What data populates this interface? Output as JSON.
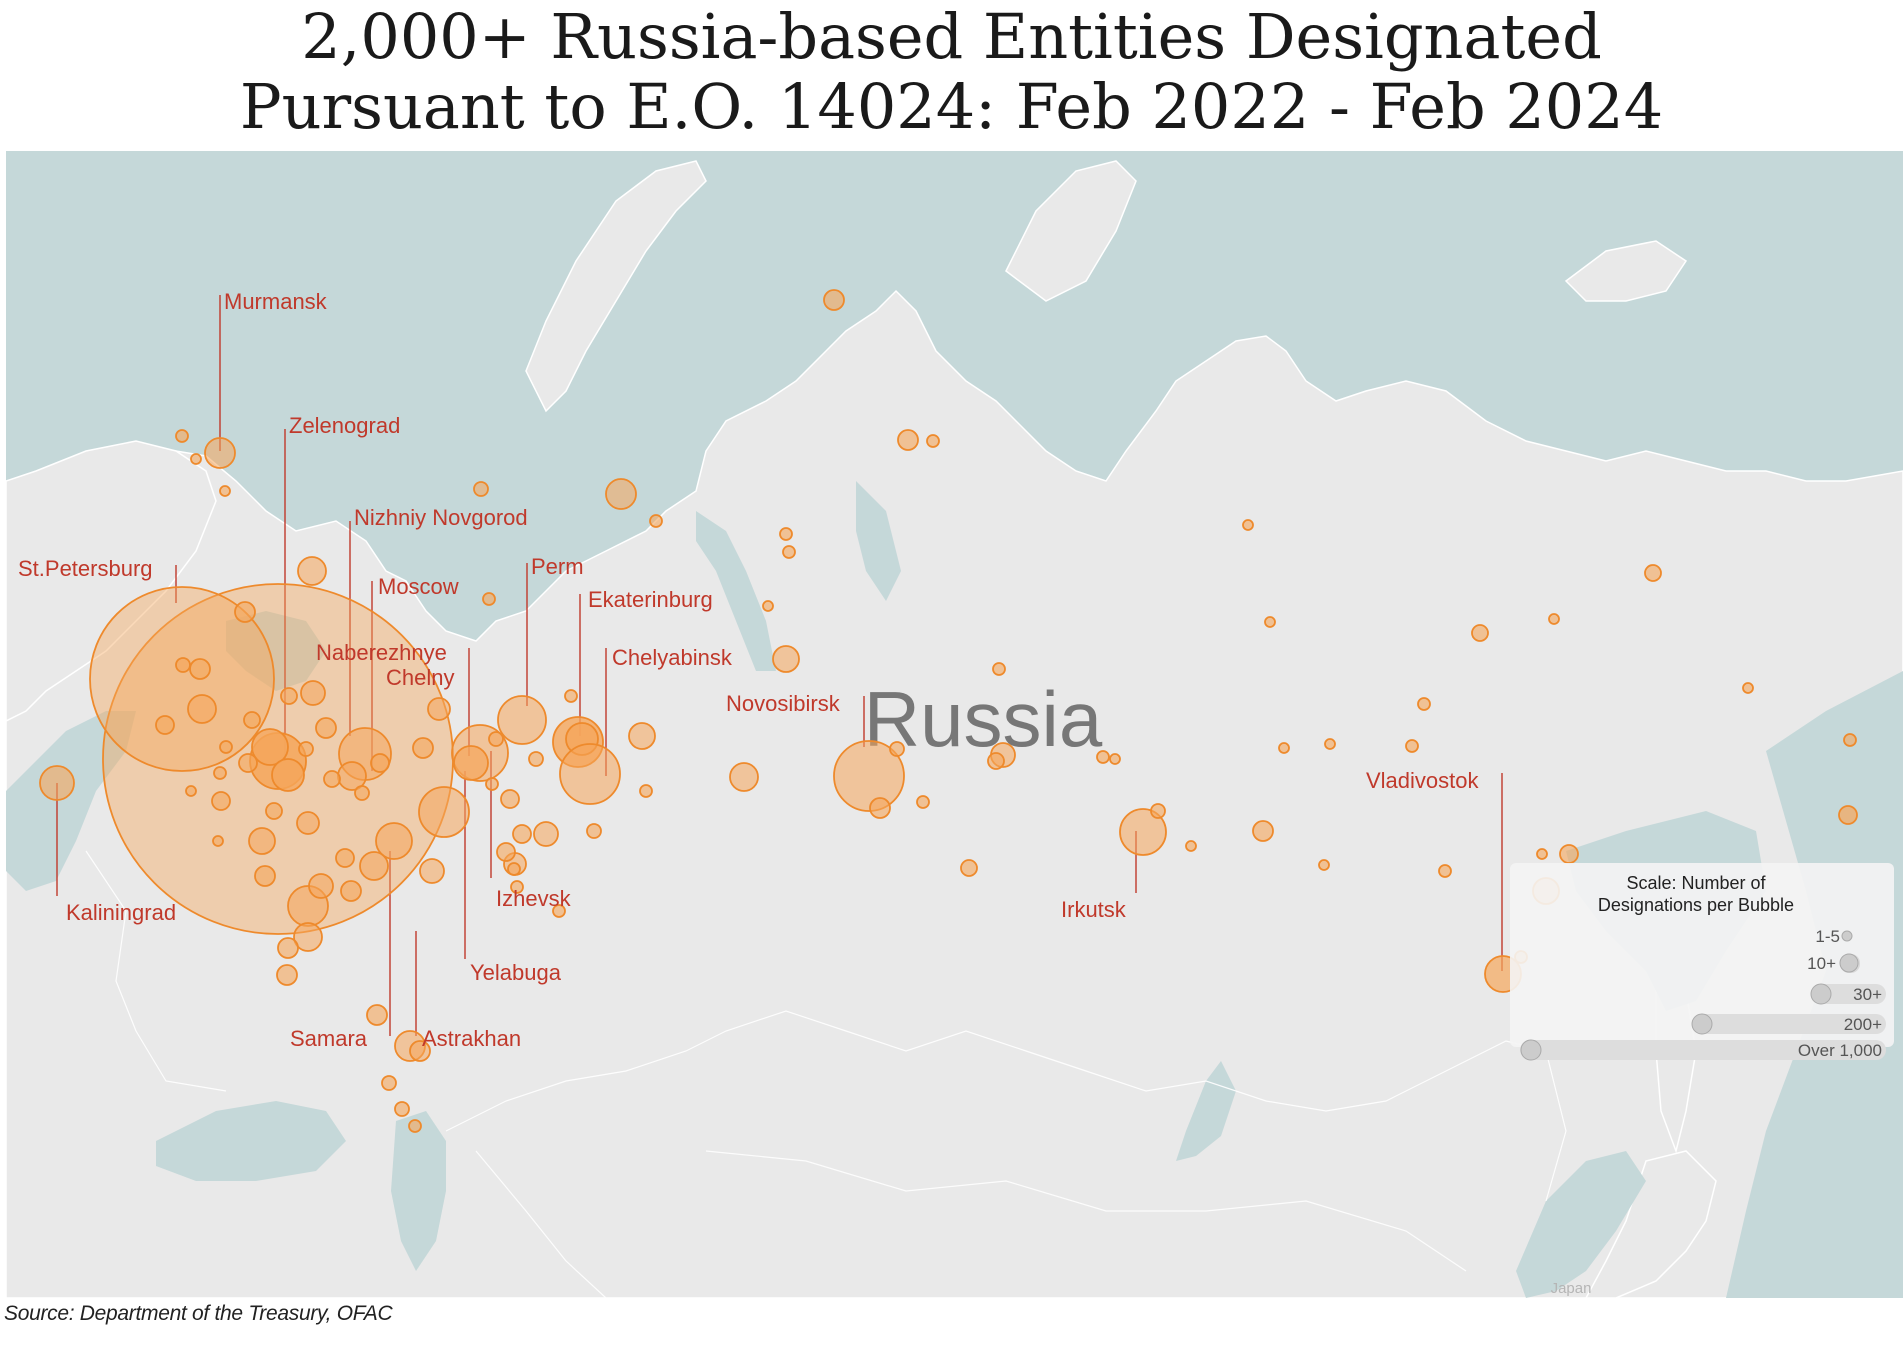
{
  "title": {
    "line1": "2,000+ Russia-based Entities Designated",
    "line2": "Pursuant to E.O. 14024: Feb 2022 - Feb 2024"
  },
  "map": {
    "country_label": "Russia",
    "faint_label": "Japan",
    "colors": {
      "water": "#c5d8d9",
      "land": "#e9e9e9",
      "border": "#ffffff",
      "bubble_fill": "#f5a65b",
      "bubble_stroke": "#ee8a2c",
      "label": "#c0392b",
      "leader_line": "#c0392b"
    },
    "city_labels": [
      "Murmansk",
      "Zelenograd",
      "Nizhniy Novgorod",
      "St.Petersburg",
      "Moscow",
      "Perm",
      "Ekaterinburg",
      "Naberezhnye",
      "Chelny",
      "Chelyabinsk",
      "Novosibirsk",
      "Vladivostok",
      "Kaliningrad",
      "Izhevsk",
      "Irkutsk",
      "Yelabuga",
      "Samara",
      "Astrakhan"
    ]
  },
  "legend": {
    "title_line1": "Scale: Number of",
    "title_line2": "Designations per Bubble",
    "items": [
      "1-5",
      "10+",
      "30+",
      "200+",
      "Over 1,000"
    ]
  },
  "source": "Source: Department of the Treasury, OFAC"
}
